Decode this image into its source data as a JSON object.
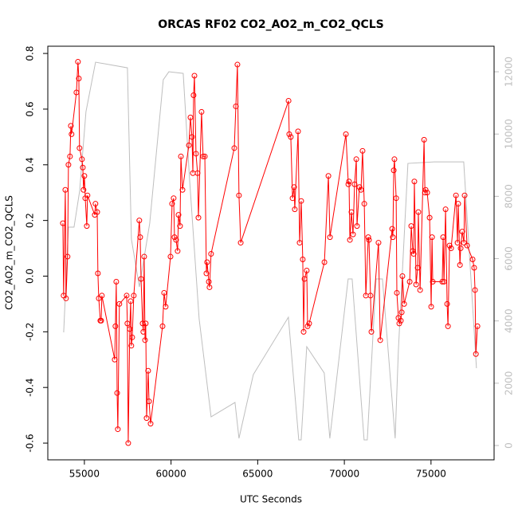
{
  "chart_data": {
    "type": "line",
    "title": "ORCAS RF02 CO2_AO2_m_CO2_QCLS",
    "x_label": "UTC Seconds",
    "y_label": "CO2_AO2_m_CO2_QCLS",
    "xlim": [
      52890,
      78640
    ],
    "xticks": [
      55000,
      60000,
      65000,
      70000,
      75000
    ],
    "ylim": [
      -0.66,
      0.826
    ],
    "yticks": [
      -0.6,
      -0.4,
      -0.2,
      {
        "value": 0,
        "label": "0.0"
      },
      0.2,
      0.4,
      0.6,
      0.8
    ],
    "y2lim": [
      -460,
      12820
    ],
    "y2ticks": [
      0,
      2000,
      4000,
      6000,
      8000,
      10000,
      12000
    ],
    "series": [
      {
        "color": "#bebebe",
        "axis": "y2",
        "x": [
          53805,
          54080,
          54402,
          54724,
          55092,
          55644,
          57483,
          57713,
          58173,
          58770,
          59552,
          59874,
          60702,
          61069,
          61621,
          62311,
          63690,
          63920,
          64748,
          66771,
          67369,
          67507,
          67829,
          68840,
          69162,
          70219,
          70449,
          71139,
          71323,
          71829,
          72197,
          72932,
          73116,
          73668,
          75185,
          76887,
          77622
        ],
        "values": [
          3633,
          7010,
          7010,
          8162,
          10720,
          12307,
          12127,
          6627,
          5091,
          7138,
          11744,
          12000,
          11948,
          8545,
          4068,
          921,
          1382,
          230,
          2277,
          4119,
          179,
          179,
          3173,
          2328,
          230,
          5347,
          5347,
          179,
          179,
          5347,
          5347,
          230,
          3045,
          9057,
          9108,
          9108,
          2482
        ]
      },
      {
        "color": "#ff0000",
        "markers": true,
        "x": [
          53760,
          53800,
          53900,
          53940,
          54030,
          54080,
          54170,
          54220,
          54260,
          54540,
          54630,
          54680,
          54720,
          54860,
          54910,
          54950,
          55000,
          55050,
          55140,
          55180,
          55600,
          55640,
          55740,
          55780,
          55830,
          55920,
          55970,
          56010,
          56750,
          56790,
          56840,
          56890,
          56930,
          57020,
          57440,
          57480,
          57530,
          57620,
          57670,
          57710,
          57760,
          57850,
          58170,
          58220,
          58270,
          58360,
          58400,
          58450,
          58500,
          58540,
          58590,
          58680,
          58730,
          58820,
          59510,
          59600,
          59690,
          59970,
          60060,
          60150,
          60200,
          60290,
          60380,
          60430,
          60520,
          60570,
          60660,
          61030,
          61120,
          61210,
          61260,
          61300,
          61350,
          61440,
          61530,
          61580,
          61760,
          61850,
          61950,
          62040,
          62080,
          62180,
          62220,
          62310,
          63650,
          63740,
          63830,
          63920,
          64020,
          66780,
          66820,
          66910,
          67010,
          67100,
          67140,
          67330,
          67420,
          67510,
          67600,
          67650,
          67700,
          67830,
          67880,
          67970,
          68850,
          69080,
          69170,
          70090,
          70230,
          70270,
          70320,
          70410,
          70500,
          70590,
          70690,
          70730,
          70870,
          70960,
          71050,
          71150,
          71240,
          71380,
          71420,
          71510,
          71560,
          71970,
          72070,
          72760,
          72800,
          72850,
          72890,
          72990,
          73030,
          73120,
          73170,
          73260,
          73310,
          73350,
          73450,
          73770,
          73860,
          73950,
          74000,
          74040,
          74140,
          74230,
          74270,
          74370,
          74600,
          74650,
          74690,
          74780,
          74920,
          75010,
          75060,
          75100,
          75650,
          75700,
          75750,
          75840,
          75930,
          75980,
          76070,
          76160,
          76440,
          76530,
          76570,
          76670,
          76710,
          76800,
          76900,
          76940,
          77080,
          77400,
          77490,
          77540,
          77590,
          77680
        ],
        "values": [
          0.19,
          -0.07,
          0.31,
          -0.08,
          0.07,
          0.4,
          0.43,
          0.54,
          0.51,
          0.66,
          0.77,
          0.71,
          0.46,
          0.42,
          0.39,
          0.31,
          0.36,
          0.28,
          0.18,
          0.29,
          0.22,
          0.26,
          0.23,
          0.01,
          -0.08,
          -0.16,
          -0.16,
          -0.07,
          -0.3,
          -0.18,
          -0.02,
          -0.42,
          -0.55,
          -0.1,
          -0.07,
          -0.17,
          -0.6,
          -0.19,
          -0.09,
          -0.25,
          -0.22,
          -0.07,
          0.2,
          0.14,
          -0.01,
          -0.17,
          -0.2,
          0.07,
          -0.23,
          -0.17,
          -0.51,
          -0.34,
          -0.45,
          -0.53,
          -0.18,
          -0.06,
          -0.11,
          0.07,
          0.26,
          0.28,
          0.14,
          0.13,
          0.09,
          0.22,
          0.18,
          0.43,
          0.31,
          0.47,
          0.57,
          0.5,
          0.37,
          0.65,
          0.72,
          0.44,
          0.37,
          0.21,
          0.59,
          0.43,
          0.43,
          0.01,
          0.05,
          -0.02,
          -0.04,
          0.08,
          0.46,
          0.61,
          0.76,
          0.29,
          0.12,
          0.63,
          0.51,
          0.5,
          0.28,
          0.32,
          0.24,
          0.52,
          0.12,
          0.27,
          0.06,
          -0.2,
          -0.01,
          0.02,
          -0.18,
          -0.17,
          0.05,
          0.36,
          0.14,
          0.51,
          0.33,
          0.34,
          0.13,
          0.23,
          0.15,
          0.33,
          0.42,
          0.18,
          0.32,
          0.31,
          0.45,
          0.26,
          -0.07,
          0.14,
          0.13,
          -0.07,
          -0.2,
          0.12,
          -0.23,
          0.17,
          0.14,
          0.38,
          0.42,
          0.28,
          -0.06,
          -0.15,
          -0.17,
          -0.16,
          -0.13,
          0,
          -0.1,
          -0.02,
          0.18,
          0.09,
          0.08,
          0.34,
          -0.03,
          0.03,
          0.23,
          -0.05,
          0.49,
          0.3,
          0.31,
          0.3,
          0.21,
          -0.11,
          0.14,
          -0.02,
          -0.02,
          0.14,
          -0.02,
          0.24,
          -0.1,
          -0.18,
          0.11,
          0.1,
          0.29,
          0.12,
          0.26,
          0.04,
          0.1,
          0.16,
          0.12,
          0.29,
          0.11,
          0.06,
          0.03,
          -0.05,
          -0.28,
          -0.18
        ]
      }
    ]
  }
}
